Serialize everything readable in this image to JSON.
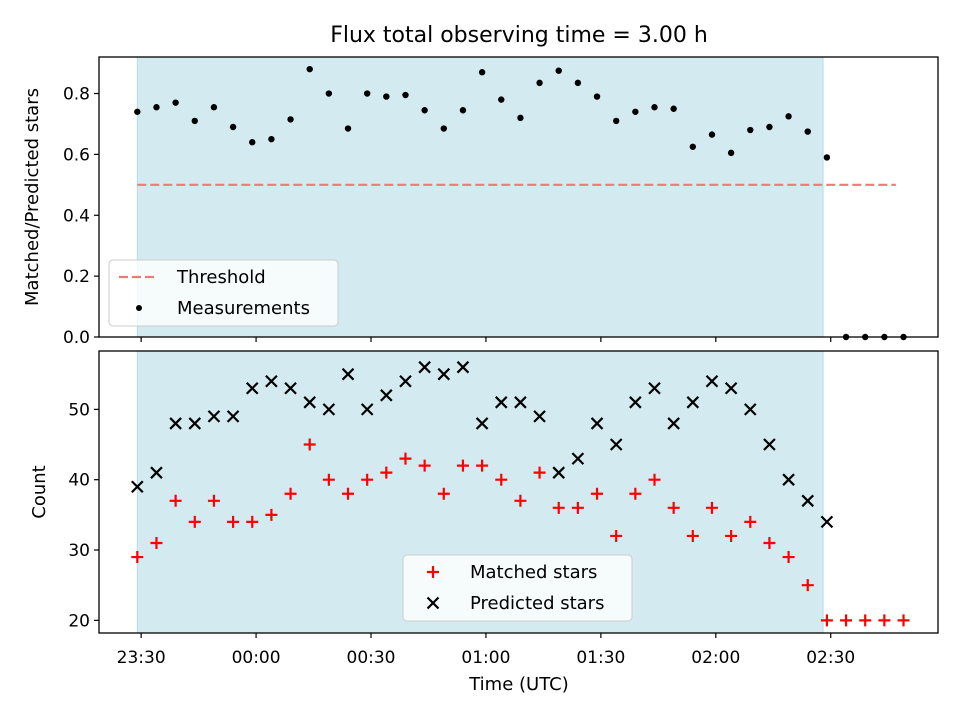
{
  "figure": {
    "title": "Flux total observing time = 3.00 h",
    "xlabel": "Time (UTC)",
    "x_ticks": [
      "23:30",
      "00:00",
      "00:30",
      "01:00",
      "01:30",
      "02:00",
      "02:30"
    ]
  },
  "colors": {
    "shade": "#d3eaf0",
    "threshold": "#f07878",
    "matched": "#ff0000",
    "predicted": "#000000",
    "measurement": "#000000"
  },
  "chart_data": [
    {
      "type": "scatter",
      "panel": "top",
      "ylabel": "Matched/Predicted stars",
      "ylim": [
        0,
        0.92
      ],
      "y_ticks": [
        "0.0",
        "0.2",
        "0.4",
        "0.6",
        "0.8"
      ],
      "x_unit": "minutes after 23:30 UTC",
      "xlim": [
        -11,
        208
      ],
      "shaded_span": [
        -1,
        178
      ],
      "threshold": {
        "name": "Threshold",
        "value": 0.5,
        "x": [
          -1,
          197
        ]
      },
      "series": [
        {
          "name": "Measurements",
          "x": [
            -1,
            4,
            9,
            14,
            19,
            24,
            29,
            34,
            39,
            44,
            49,
            54,
            59,
            64,
            69,
            74,
            79,
            84,
            89,
            94,
            99,
            104,
            109,
            114,
            119,
            124,
            129,
            134,
            139,
            144,
            149,
            154,
            159,
            164,
            169,
            174,
            179,
            184,
            189,
            194,
            199
          ],
          "y": [
            0.74,
            0.755,
            0.77,
            0.71,
            0.755,
            0.69,
            0.64,
            0.65,
            0.715,
            0.88,
            0.8,
            0.685,
            0.8,
            0.79,
            0.795,
            0.745,
            0.685,
            0.745,
            0.87,
            0.78,
            0.72,
            0.835,
            0.875,
            0.835,
            0.79,
            0.71,
            0.74,
            0.755,
            0.75,
            0.625,
            0.665,
            0.605,
            0.68,
            0.69,
            0.725,
            0.675,
            0.59,
            0.0,
            0.0,
            0.0,
            0.0
          ]
        }
      ],
      "legend": {
        "position": "lower left",
        "entries": [
          "Threshold",
          "Measurements"
        ]
      }
    },
    {
      "type": "scatter",
      "panel": "bottom",
      "ylabel": "Count",
      "ylim": [
        18.2,
        58.3
      ],
      "y_ticks": [
        "20",
        "30",
        "40",
        "50"
      ],
      "x_unit": "minutes after 23:30 UTC",
      "xlim": [
        -11,
        208
      ],
      "shaded_span": [
        -1,
        178
      ],
      "series": [
        {
          "name": "Matched stars",
          "marker": "plus",
          "x": [
            -1,
            4,
            9,
            14,
            19,
            24,
            29,
            34,
            39,
            44,
            49,
            54,
            59,
            64,
            69,
            74,
            79,
            84,
            89,
            94,
            99,
            104,
            109,
            114,
            119,
            124,
            129,
            134,
            139,
            144,
            149,
            154,
            159,
            164,
            169,
            174,
            179,
            184,
            189,
            194,
            199
          ],
          "y": [
            29,
            31,
            37,
            34,
            37,
            34,
            34,
            35,
            38,
            45,
            40,
            38,
            40,
            41,
            43,
            42,
            38,
            42,
            42,
            40,
            37,
            41,
            36,
            36,
            38,
            32,
            38,
            40,
            36,
            32,
            36,
            32,
            34,
            31,
            29,
            25,
            20,
            20,
            20,
            20,
            20
          ]
        },
        {
          "name": "Predicted stars",
          "marker": "x",
          "x": [
            -1,
            4,
            9,
            14,
            19,
            24,
            29,
            34,
            39,
            44,
            49,
            54,
            59,
            64,
            69,
            74,
            79,
            84,
            89,
            94,
            99,
            104,
            109,
            114,
            119,
            124,
            129,
            134,
            139,
            144,
            149,
            154,
            159,
            164,
            169,
            174,
            179
          ],
          "y": [
            39,
            41,
            48,
            48,
            49,
            49,
            53,
            54,
            53,
            51,
            50,
            55,
            50,
            52,
            54,
            56,
            55,
            56,
            48,
            51,
            51,
            49,
            41,
            43,
            48,
            45,
            51,
            53,
            48,
            51,
            54,
            53,
            50,
            45,
            40,
            37,
            34
          ]
        }
      ],
      "legend": {
        "position": "lower center",
        "entries": [
          "Matched stars",
          "Predicted stars"
        ]
      }
    }
  ]
}
